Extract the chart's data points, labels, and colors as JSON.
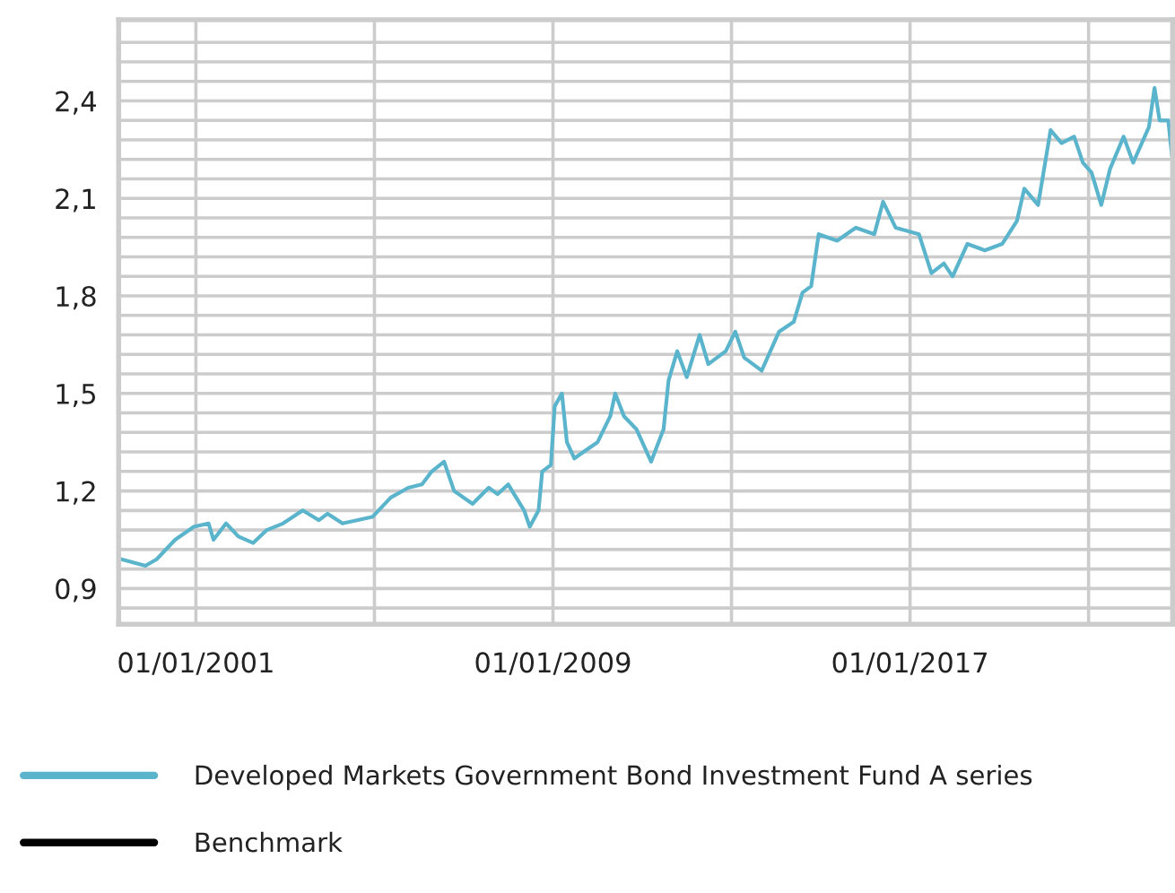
{
  "chart_data": {
    "type": "line",
    "x": [
      "1999-05-01",
      "1999-11-15",
      "2000-02-15",
      "2000-07-15",
      "2000-12-15",
      "2001-04-15",
      "2001-05-25",
      "2001-09-05",
      "2001-12-15",
      "2002-04-15",
      "2002-08-05",
      "2002-12-15",
      "2003-05-25",
      "2003-10-05",
      "2003-12-15",
      "2004-04-15",
      "2004-12-15",
      "2005-05-15",
      "2005-10-05",
      "2006-01-25",
      "2006-04-15",
      "2006-07-25",
      "2006-10-15",
      "2007-03-15",
      "2007-07-25",
      "2007-10-05",
      "2008-01-01",
      "2008-05-10",
      "2008-06-25",
      "2008-09-05",
      "2008-10-05",
      "2008-12-15",
      "2009-01-15",
      "2009-03-15",
      "2009-04-25",
      "2009-06-25",
      "2009-10-15",
      "2010-01-01",
      "2010-04-15",
      "2010-05-25",
      "2010-08-05",
      "2010-11-15",
      "2011-03-15",
      "2011-06-25",
      "2011-08-05",
      "2011-10-15",
      "2012-01-01",
      "2012-04-15",
      "2012-06-25",
      "2012-11-15",
      "2013-02-01",
      "2013-04-15",
      "2013-09-05",
      "2013-11-15",
      "2014-01-25",
      "2014-05-25",
      "2014-08-05",
      "2014-10-15",
      "2014-12-15",
      "2015-05-15",
      "2015-10-15",
      "2016-03-15",
      "2016-05-25",
      "2016-09-05",
      "2017-03-15",
      "2017-06-25",
      "2017-10-05",
      "2017-12-15",
      "2018-04-15",
      "2018-09-05",
      "2019-01-25",
      "2019-05-25",
      "2019-07-25",
      "2019-11-15",
      "2020-02-25",
      "2020-05-25",
      "2020-09-05",
      "2020-11-15",
      "2021-01-25",
      "2021-04-15",
      "2021-06-25",
      "2021-10-15",
      "2022-01-01",
      "2022-05-10",
      "2022-06-25",
      "2022-08-05",
      "2022-10-15",
      "2022-11-15"
    ],
    "series": [
      {
        "name": "Developed Markets Government Bond Investment Fund A series",
        "color": "#5ab4cc",
        "values": [
          0.99,
          0.97,
          0.99,
          1.05,
          1.09,
          1.1,
          1.05,
          1.1,
          1.06,
          1.04,
          1.08,
          1.1,
          1.14,
          1.11,
          1.13,
          1.1,
          1.12,
          1.18,
          1.21,
          1.22,
          1.26,
          1.29,
          1.2,
          1.16,
          1.21,
          1.19,
          1.22,
          1.14,
          1.09,
          1.14,
          1.26,
          1.28,
          1.46,
          1.5,
          1.35,
          1.3,
          1.33,
          1.35,
          1.43,
          1.5,
          1.43,
          1.39,
          1.29,
          1.39,
          1.54,
          1.63,
          1.55,
          1.68,
          1.59,
          1.63,
          1.69,
          1.61,
          1.57,
          1.63,
          1.69,
          1.72,
          1.81,
          1.83,
          1.99,
          1.97,
          2.01,
          1.99,
          2.09,
          2.01,
          1.99,
          1.87,
          1.9,
          1.86,
          1.96,
          1.94,
          1.96,
          2.03,
          2.13,
          2.08,
          2.31,
          2.27,
          2.29,
          2.21,
          2.18,
          2.08,
          2.19,
          2.29,
          2.21,
          2.32,
          2.44,
          2.34,
          2.34,
          2.23
        ]
      },
      {
        "name": "Benchmark",
        "color": "#000000",
        "values": [
          null,
          null,
          null,
          null,
          null,
          null,
          null,
          null,
          null,
          null,
          null,
          null,
          null,
          null,
          null,
          null,
          null,
          null,
          null,
          null,
          null,
          null,
          null,
          null,
          null,
          null,
          null,
          null,
          null,
          null,
          null,
          null,
          null,
          null,
          null,
          null,
          null,
          null,
          null,
          null,
          null,
          null,
          null,
          null,
          null,
          null,
          null,
          null,
          null,
          null,
          null,
          null,
          null,
          null,
          null,
          null,
          null,
          null,
          null,
          null,
          null,
          null,
          null,
          null,
          null,
          null,
          null,
          null,
          null,
          null,
          null,
          null,
          null,
          null,
          null,
          null,
          null,
          null,
          null,
          null,
          null,
          null,
          null,
          null,
          null,
          null,
          null,
          null
        ]
      }
    ],
    "xlim": [
      "1999-04-10",
      "2022-11-20"
    ],
    "xticks": [
      {
        "value": "2001-01-01",
        "label": "01/01/2001"
      },
      {
        "value": "2005-01-01",
        "label": null
      },
      {
        "value": "2009-01-01",
        "label": "01/01/2009"
      },
      {
        "value": "2013-01-01",
        "label": null
      },
      {
        "value": "2017-01-01",
        "label": "01/01/2017"
      },
      {
        "value": "2021-01-01",
        "label": null
      }
    ],
    "ylim": [
      0.79,
      2.65
    ],
    "yticks": [
      {
        "value": 0.84,
        "label": null
      },
      {
        "value": 0.9,
        "label": "0,9"
      },
      {
        "value": 0.96,
        "label": null
      },
      {
        "value": 1.02,
        "label": null
      },
      {
        "value": 1.08,
        "label": null
      },
      {
        "value": 1.14,
        "label": null
      },
      {
        "value": 1.2,
        "label": "1,2"
      },
      {
        "value": 1.26,
        "label": null
      },
      {
        "value": 1.32,
        "label": null
      },
      {
        "value": 1.38,
        "label": null
      },
      {
        "value": 1.44,
        "label": null
      },
      {
        "value": 1.5,
        "label": "1,5"
      },
      {
        "value": 1.56,
        "label": null
      },
      {
        "value": 1.62,
        "label": null
      },
      {
        "value": 1.68,
        "label": null
      },
      {
        "value": 1.74,
        "label": null
      },
      {
        "value": 1.8,
        "label": "1,8"
      },
      {
        "value": 1.86,
        "label": null
      },
      {
        "value": 1.92,
        "label": null
      },
      {
        "value": 1.98,
        "label": null
      },
      {
        "value": 2.04,
        "label": null
      },
      {
        "value": 2.1,
        "label": "2,1"
      },
      {
        "value": 2.16,
        "label": null
      },
      {
        "value": 2.22,
        "label": null
      },
      {
        "value": 2.28,
        "label": null
      },
      {
        "value": 2.34,
        "label": null
      },
      {
        "value": 2.4,
        "label": "2,4"
      },
      {
        "value": 2.46,
        "label": null
      },
      {
        "value": 2.52,
        "label": null
      },
      {
        "value": 2.58,
        "label": null
      }
    ],
    "grid": true,
    "legend": "bottom"
  }
}
